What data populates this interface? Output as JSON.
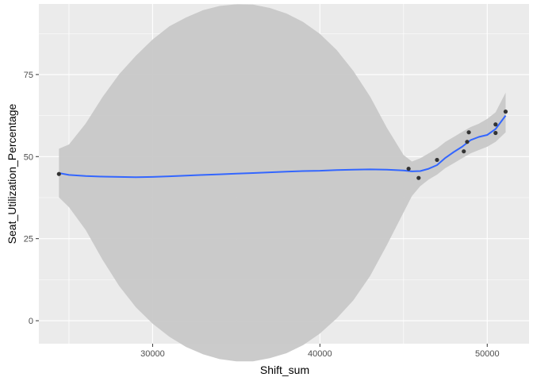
{
  "chart_data": {
    "type": "scatter",
    "title": "",
    "xlabel": "Shift_sum",
    "ylabel": "Seat_Utilization_Percentage",
    "xlim": [
      23200,
      52500
    ],
    "ylim": [
      -7,
      96.5
    ],
    "x_ticks": [
      30000,
      40000,
      50000
    ],
    "x_tick_labels": [
      "30000",
      "40000",
      "50000"
    ],
    "y_ticks": [
      0,
      25,
      50,
      75
    ],
    "y_tick_labels": [
      "0",
      "25",
      "50",
      "75"
    ],
    "grid": true,
    "colors": {
      "panel": "#EBEBEB",
      "grid": "#FFFFFF",
      "points": "#333333",
      "smooth_line": "#3366FF",
      "confidence_band": "#C8C8C8"
    },
    "points": [
      {
        "x": 24400,
        "y": 44.7
      },
      {
        "x": 45300,
        "y": 46.3
      },
      {
        "x": 45900,
        "y": 43.5
      },
      {
        "x": 47000,
        "y": 49.0
      },
      {
        "x": 48600,
        "y": 51.6
      },
      {
        "x": 48800,
        "y": 54.5
      },
      {
        "x": 48900,
        "y": 57.4
      },
      {
        "x": 50500,
        "y": 59.8
      },
      {
        "x": 50500,
        "y": 57.2
      },
      {
        "x": 51100,
        "y": 63.7
      }
    ],
    "smooth": {
      "x": [
        24400,
        25000,
        26000,
        27000,
        28000,
        29000,
        30000,
        31000,
        32000,
        33000,
        34000,
        35000,
        36000,
        37000,
        38000,
        39000,
        40000,
        41000,
        42000,
        43000,
        44000,
        45000,
        45500,
        46000,
        46500,
        47000,
        47500,
        48000,
        48500,
        49000,
        49500,
        50000,
        50500,
        51100
      ],
      "y": [
        45.0,
        44.4,
        44.1,
        43.9,
        43.8,
        43.7,
        43.8,
        44.0,
        44.2,
        44.4,
        44.6,
        44.8,
        45.0,
        45.2,
        45.4,
        45.6,
        45.7,
        45.9,
        46.0,
        46.1,
        46.0,
        45.8,
        45.5,
        45.6,
        46.3,
        47.4,
        49.6,
        51.4,
        53.0,
        55.0,
        56.0,
        56.6,
        58.4,
        62.5
      ],
      "lower": [
        37.6,
        34.6,
        27.6,
        18.6,
        10.6,
        4.1,
        -0.9,
        -4.9,
        -8.0,
        -10.2,
        -11.7,
        -12.4,
        -12.4,
        -11.4,
        -9.9,
        -7.4,
        -3.9,
        0.7,
        6.2,
        13.6,
        23.0,
        33.0,
        38.0,
        41.0,
        43.0,
        44.5,
        46.5,
        48.0,
        49.5,
        51.0,
        52.0,
        53.0,
        54.5,
        57.4
      ],
      "upper": [
        52.4,
        53.7,
        60.1,
        68.1,
        75.1,
        80.7,
        85.7,
        89.7,
        92.4,
        94.6,
        95.9,
        96.4,
        96.3,
        95.3,
        93.6,
        91.0,
        87.4,
        82.5,
        76.1,
        68.3,
        58.8,
        50.5,
        48.5,
        49.5,
        51.0,
        52.5,
        54.5,
        56.0,
        57.5,
        59.0,
        60.0,
        61.5,
        63.5,
        69.5
      ]
    }
  }
}
